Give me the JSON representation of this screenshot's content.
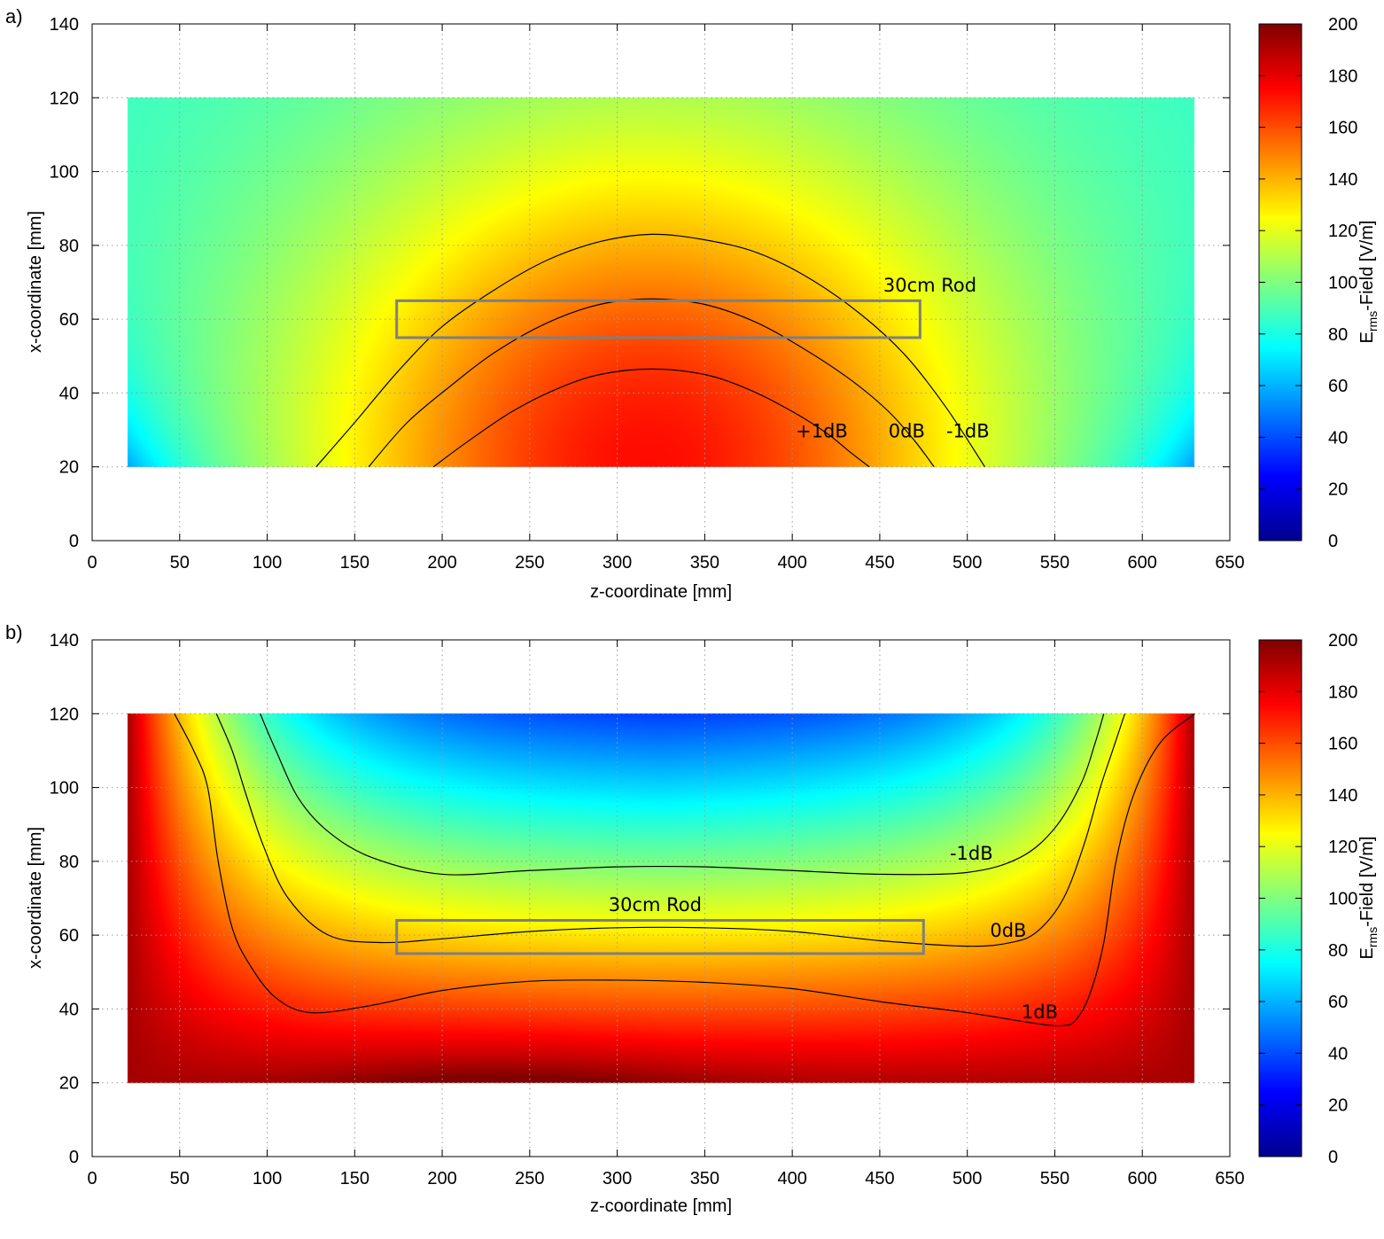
{
  "chart_data": [
    {
      "panel_label": "a)",
      "type": "heatmap",
      "xlabel": "z-coordinate [mm]",
      "ylabel": "x-coordinate [mm]",
      "xlim": [
        0,
        650
      ],
      "ylim": [
        0,
        140
      ],
      "xticks": [
        "0",
        "50",
        "100",
        "150",
        "200",
        "250",
        "300",
        "350",
        "400",
        "450",
        "500",
        "550",
        "600",
        "650"
      ],
      "yticks": [
        "0",
        "20",
        "40",
        "60",
        "80",
        "100",
        "120",
        "140"
      ],
      "grid": true,
      "data_extent": {
        "z": [
          20,
          630
        ],
        "x": [
          20,
          120
        ]
      },
      "field_model": "bump",
      "colorbar": {
        "label_main": "E",
        "label_sub": "rms",
        "label_rest": "-Field [V/m]",
        "range": [
          0,
          200
        ],
        "ticks": [
          "0",
          "20",
          "40",
          "60",
          "80",
          "100",
          "120",
          "140",
          "160",
          "180",
          "200"
        ],
        "colormap": "jet"
      },
      "contours": [
        {
          "name": "-1dB",
          "points": [
            [
              128,
              20
            ],
            [
              150,
              32
            ],
            [
              175,
              46
            ],
            [
              200,
              58
            ],
            [
              230,
              68
            ],
            [
              260,
              76
            ],
            [
              290,
              81
            ],
            [
              320,
              83
            ],
            [
              350,
              81.5
            ],
            [
              380,
              78
            ],
            [
              410,
              71
            ],
            [
              440,
              61
            ],
            [
              465,
              50
            ],
            [
              488,
              36
            ],
            [
              510,
              20
            ]
          ]
        },
        {
          "name": "0dB",
          "points": [
            [
              158,
              20
            ],
            [
              180,
              32
            ],
            [
              205,
              42
            ],
            [
              230,
              51
            ],
            [
              260,
              59
            ],
            [
              290,
              64
            ],
            [
              320,
              65.5
            ],
            [
              350,
              64
            ],
            [
              380,
              59
            ],
            [
              410,
              51
            ],
            [
              435,
              43
            ],
            [
              455,
              35
            ],
            [
              470,
              27
            ],
            [
              481,
              20
            ]
          ]
        },
        {
          "name": "+1dB",
          "points": [
            [
              195,
              20
            ],
            [
              215,
              27
            ],
            [
              240,
              35
            ],
            [
              265,
              41
            ],
            [
              290,
              45
            ],
            [
              320,
              46.5
            ],
            [
              350,
              45
            ],
            [
              375,
              41
            ],
            [
              400,
              35
            ],
            [
              420,
              29
            ],
            [
              433,
              24
            ],
            [
              444,
              20
            ]
          ]
        }
      ],
      "rod": {
        "name": "30cm Rod",
        "z": [
          174,
          473
        ],
        "x": [
          55,
          65
        ]
      },
      "annotations": [
        {
          "text": "30cm Rod",
          "z": 452,
          "x": 67.5
        },
        {
          "text": "+1dB",
          "z": 402,
          "x": 28
        },
        {
          "text": "0dB",
          "z": 455,
          "x": 28
        },
        {
          "text": "-1dB",
          "z": 488,
          "x": 28
        }
      ]
    },
    {
      "panel_label": "b)",
      "type": "heatmap",
      "xlabel": "z-coordinate [mm]",
      "ylabel": "x-coordinate [mm]",
      "xlim": [
        0,
        650
      ],
      "ylim": [
        0,
        140
      ],
      "xticks": [
        "0",
        "50",
        "100",
        "150",
        "200",
        "250",
        "300",
        "350",
        "400",
        "450",
        "500",
        "550",
        "600",
        "650"
      ],
      "yticks": [
        "0",
        "20",
        "40",
        "60",
        "80",
        "100",
        "120",
        "140"
      ],
      "grid": true,
      "data_extent": {
        "z": [
          20,
          630
        ],
        "x": [
          20,
          120
        ]
      },
      "field_model": "trough",
      "colorbar": {
        "label_main": "E",
        "label_sub": "rms",
        "label_rest": "-Field [V/m]",
        "range": [
          0,
          200
        ],
        "ticks": [
          "0",
          "20",
          "40",
          "60",
          "80",
          "100",
          "120",
          "140",
          "160",
          "180",
          "200"
        ],
        "colormap": "jet"
      },
      "contours": [
        {
          "name": "-1dB",
          "points": [
            [
              96,
              120
            ],
            [
              105,
              110
            ],
            [
              118,
              97
            ],
            [
              135,
              88
            ],
            [
              160,
              81
            ],
            [
              200,
              76.5
            ],
            [
              250,
              77.5
            ],
            [
              300,
              78.5
            ],
            [
              350,
              78.5
            ],
            [
              400,
              77.5
            ],
            [
              450,
              76.5
            ],
            [
              500,
              77
            ],
            [
              530,
              81
            ],
            [
              550,
              89
            ],
            [
              565,
              101
            ],
            [
              573,
              112
            ],
            [
              578,
              120
            ]
          ]
        },
        {
          "name": "0dB",
          "points": [
            [
              71,
              120
            ],
            [
              80,
              110
            ],
            [
              88,
              98
            ],
            [
              98,
              84
            ],
            [
              112,
              70
            ],
            [
              135,
              60
            ],
            [
              165,
              58
            ],
            [
              200,
              59
            ],
            [
              250,
              61
            ],
            [
              300,
              62
            ],
            [
              350,
              62
            ],
            [
              400,
              61
            ],
            [
              450,
              58.5
            ],
            [
              500,
              57
            ],
            [
              525,
              58
            ],
            [
              540,
              61
            ],
            [
              555,
              70
            ],
            [
              567,
              85
            ],
            [
              576,
              100
            ],
            [
              583,
              110
            ],
            [
              590,
              120
            ]
          ]
        },
        {
          "name": "1dB",
          "points": [
            [
              47,
              120
            ],
            [
              58,
              110
            ],
            [
              66,
              100
            ],
            [
              72,
              80
            ],
            [
              80,
              62
            ],
            [
              90,
              52
            ],
            [
              105,
              43
            ],
            [
              125,
              39
            ],
            [
              160,
              41
            ],
            [
              200,
              45
            ],
            [
              250,
              47.5
            ],
            [
              300,
              47.8
            ],
            [
              350,
              47.2
            ],
            [
              400,
              45.5
            ],
            [
              450,
              42
            ],
            [
              500,
              39
            ],
            [
              540,
              36
            ],
            [
              555,
              35.5
            ],
            [
              562,
              37
            ],
            [
              570,
              44
            ],
            [
              578,
              58
            ],
            [
              585,
              80
            ],
            [
              595,
              98
            ],
            [
              610,
              112
            ],
            [
              630,
              120
            ]
          ]
        }
      ],
      "rod": {
        "name": "30cm Rod",
        "z": [
          174,
          475
        ],
        "x": [
          55,
          64
        ]
      },
      "annotations": [
        {
          "text": "30cm Rod",
          "z": 295,
          "x": 66.5
        },
        {
          "text": "-1dB",
          "z": 490,
          "x": 80.5
        },
        {
          "text": "0dB",
          "z": 513,
          "x": 59.5
        },
        {
          "text": "1dB",
          "z": 531,
          "x": 37.5
        }
      ]
    }
  ]
}
